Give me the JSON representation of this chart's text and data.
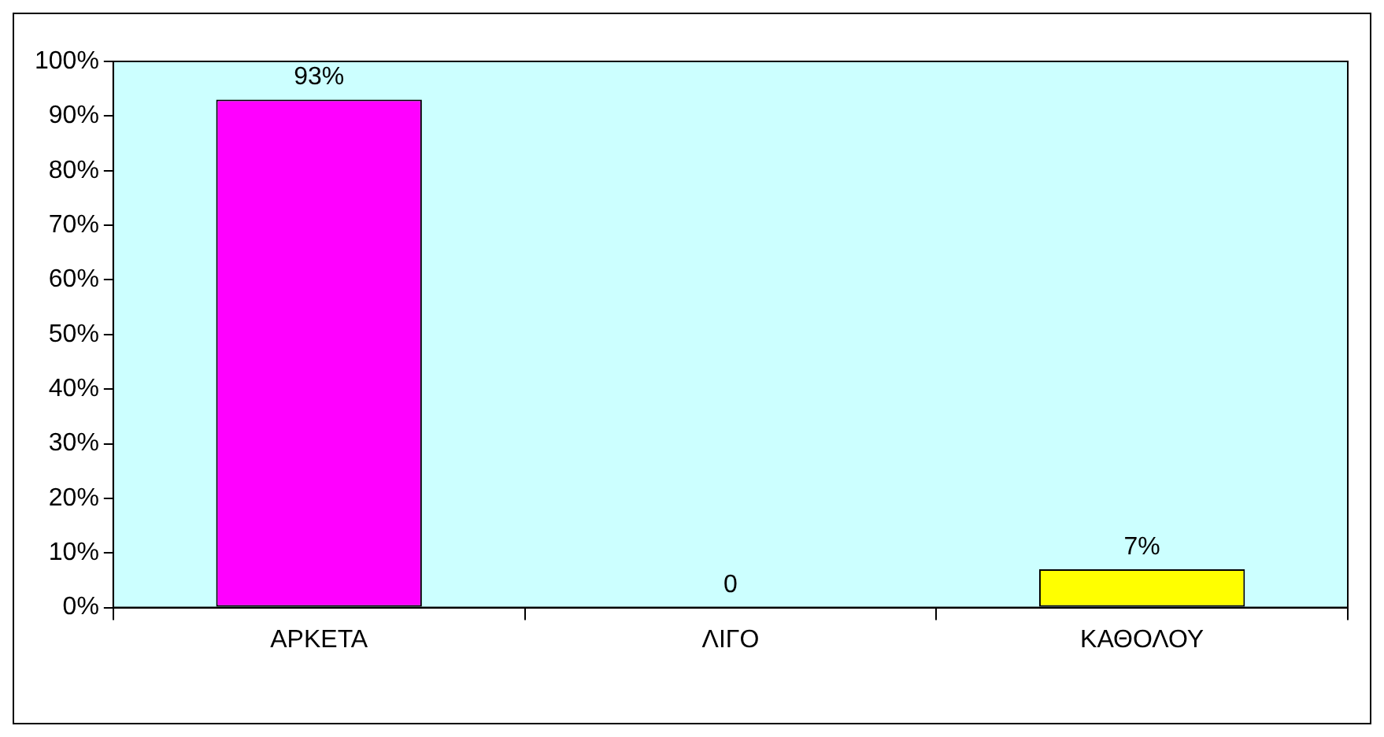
{
  "chart_data": {
    "type": "bar",
    "categories": [
      "ΑΡΚΕΤΑ",
      "ΛΙΓΟ",
      "ΚΑΘΟΛΟΥ"
    ],
    "values": [
      93,
      0,
      7
    ],
    "colors": [
      "#ff00ff",
      "#ff00ff",
      "#ffff00"
    ],
    "value_labels": [
      "93%",
      "0",
      "7%"
    ],
    "ylim": [
      0,
      100
    ],
    "yticks": [
      {
        "value": 0,
        "label": "0%"
      },
      {
        "value": 10,
        "label": "10%"
      },
      {
        "value": 20,
        "label": "20%"
      },
      {
        "value": 30,
        "label": "30%"
      },
      {
        "value": 40,
        "label": "40%"
      },
      {
        "value": 50,
        "label": "50%"
      },
      {
        "value": 60,
        "label": "60%"
      },
      {
        "value": 70,
        "label": "70%"
      },
      {
        "value": 80,
        "label": "80%"
      },
      {
        "value": 90,
        "label": "90%"
      },
      {
        "value": 100,
        "label": "100%"
      }
    ],
    "grid": false,
    "legend": false
  }
}
